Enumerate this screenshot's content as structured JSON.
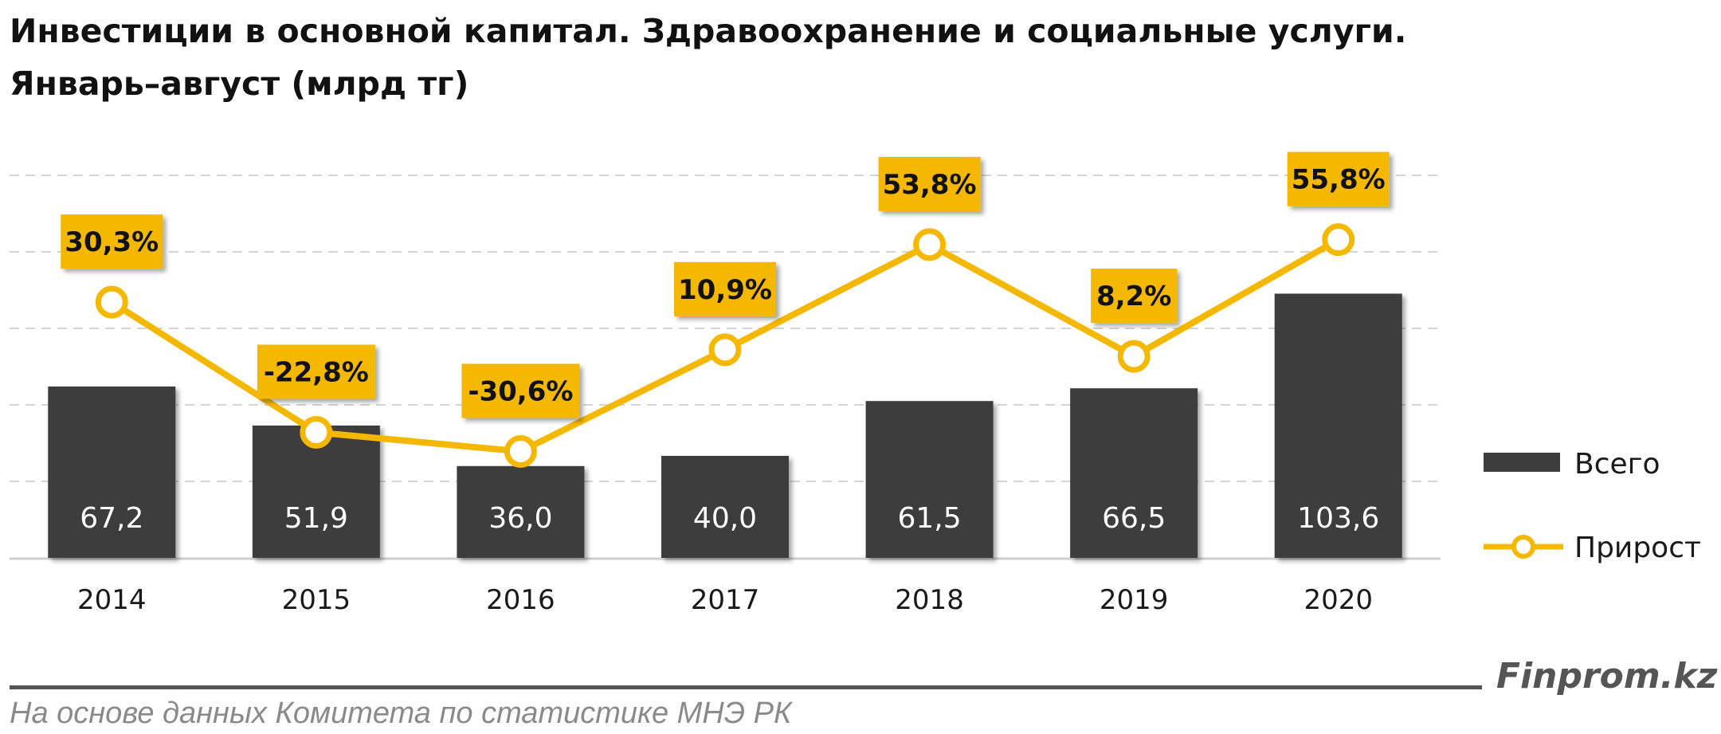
{
  "title_line1": "Инвестиции в основной капитал. Здравоохранение и социальные услуги.",
  "title_line2": "Январь–август (млрд тг)",
  "brand": "Finprom.kz",
  "source": "На основе данных  Комитета по статистике МНЭ РК",
  "colors": {
    "bar": "#3d3d3d",
    "line": "#f5b800",
    "label_bg": "#f5b800",
    "grid": "#d4d4d4"
  },
  "chart_data": {
    "type": "bar+line",
    "categories": [
      "2014",
      "2015",
      "2016",
      "2017",
      "2018",
      "2019",
      "2020"
    ],
    "series": [
      {
        "name": "Всего",
        "type": "bar",
        "values": [
          67.2,
          51.9,
          36.0,
          40.0,
          61.5,
          66.5,
          103.6
        ],
        "labels": [
          "67,2",
          "51,9",
          "36,0",
          "40,0",
          "61,5",
          "66,5",
          "103,6"
        ]
      },
      {
        "name": "Прирост",
        "type": "line",
        "values": [
          30.3,
          -22.8,
          -30.6,
          10.9,
          53.8,
          8.2,
          55.8
        ],
        "labels": [
          "30,3%",
          "-22,8%",
          "-30,6%",
          "10,9%",
          "53,8%",
          "8,2%",
          "55,8%"
        ]
      }
    ],
    "legend": "right",
    "grid": true
  }
}
